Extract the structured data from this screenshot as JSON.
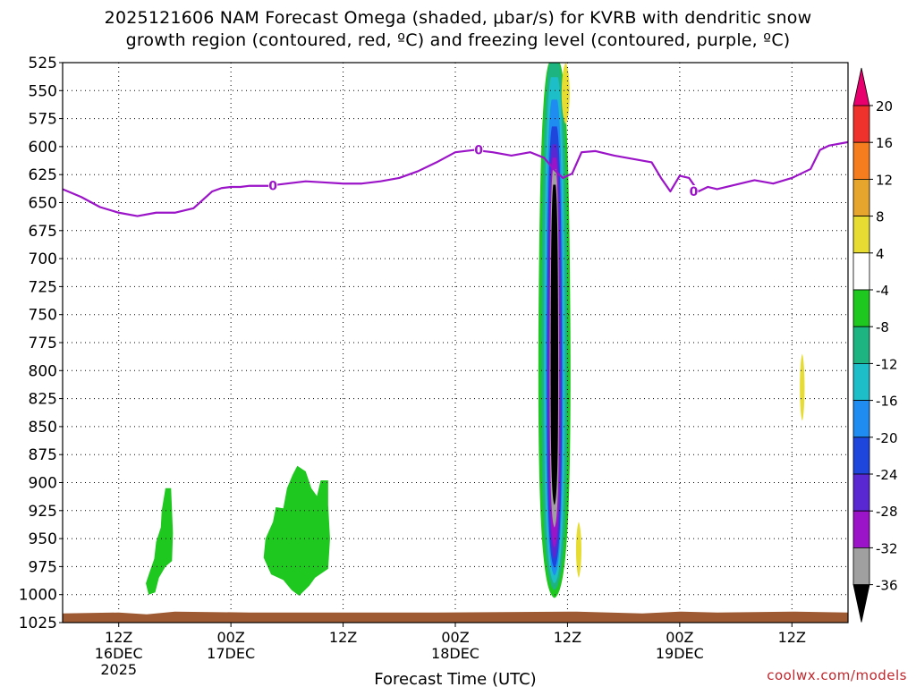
{
  "chart_data": {
    "type": "heatmap",
    "title_line1": "2025121606 NAM Forecast Omega (shaded, μbar/s) for KVRB with dendritic snow",
    "title_line2": "growth region (contoured, red, ºC) and freezing level (contoured, purple, ºC)",
    "xlabel": "Forecast Time (UTC)",
    "ylabel": "",
    "credit": "coolwx.com/models",
    "y_axis": {
      "scale": "pressure (mb), inverted",
      "ylim": [
        1025,
        525
      ],
      "ticks": [
        525,
        550,
        575,
        600,
        625,
        650,
        675,
        700,
        725,
        750,
        775,
        800,
        825,
        850,
        875,
        900,
        925,
        950,
        975,
        1000,
        1025
      ]
    },
    "x_axis": {
      "xlim_hours_from_init": [
        0,
        84
      ],
      "ticks": [
        {
          "hour": 6,
          "line1": "12Z",
          "line2": "16DEC",
          "line3": "2025"
        },
        {
          "hour": 18,
          "line1": "00Z",
          "line2": "17DEC",
          "line3": ""
        },
        {
          "hour": 30,
          "line1": "12Z",
          "line2": "",
          "line3": ""
        },
        {
          "hour": 42,
          "line1": "00Z",
          "line2": "18DEC",
          "line3": ""
        },
        {
          "hour": 54,
          "line1": "12Z",
          "line2": "",
          "line3": ""
        },
        {
          "hour": 66,
          "line1": "00Z",
          "line2": "19DEC",
          "line3": ""
        },
        {
          "hour": 78,
          "line1": "12Z",
          "line2": "",
          "line3": ""
        }
      ]
    },
    "grid": true,
    "colorbar": {
      "labels": [
        20,
        16,
        12,
        8,
        4,
        -4,
        -8,
        -12,
        -16,
        -20,
        -24,
        -28,
        -32,
        -36
      ],
      "colors": {
        "gt20": "#e8006e",
        "16_20": "#f0322d",
        "12_16": "#f57d1e",
        "8_12": "#e6a62d",
        "4_8": "#e6dc32",
        "m4_4": "#ffffff",
        "m8_m4": "#1ec81e",
        "m12_m8": "#1eb482",
        "m16_m12": "#1ebec8",
        "m20_m16": "#1e8cf0",
        "m24_m20": "#1e46dc",
        "m28_m24": "#5a28d2",
        "m32_m28": "#9b14c8",
        "m36_m32": "#a0a0a0",
        "lt_m36": "#000000"
      }
    },
    "freezing_level": {
      "label": "0",
      "color": "#9b14c8",
      "hours": [
        0,
        2,
        4,
        6,
        8,
        10,
        12,
        14,
        16,
        17,
        18,
        19,
        20,
        22,
        24,
        26,
        28,
        30,
        32,
        34,
        36,
        38,
        40,
        42,
        44,
        46,
        48,
        50,
        51.5,
        52.5,
        53.5,
        54.5,
        55.5,
        57,
        59,
        61,
        63,
        64,
        65,
        66,
        67,
        68,
        69,
        70,
        72,
        74,
        76,
        78,
        80,
        81,
        82,
        84
      ],
      "pressure": [
        638,
        645,
        654,
        659,
        662,
        659,
        659,
        655,
        640,
        637,
        636,
        636,
        635,
        635,
        633,
        631,
        632,
        633,
        633,
        631,
        628,
        622,
        614,
        605,
        603,
        605,
        608,
        605,
        610,
        620,
        628,
        624,
        605,
        604,
        608,
        611,
        614,
        628,
        640,
        626,
        628,
        640,
        636,
        638,
        634,
        630,
        633,
        628,
        620,
        603,
        599,
        596
      ]
    },
    "omega_features": [
      {
        "name": "uplift-column-main",
        "center_hour": 52.6,
        "half_width_hours": 1.9,
        "top_mb": 525,
        "bottom_mb": 1003,
        "min_value": -40
      },
      {
        "name": "uplift-patch-16dec",
        "center_hour": 10.5,
        "top_mb": 905,
        "bottom_mb": 1000,
        "value": -6
      },
      {
        "name": "uplift-patch-17dec",
        "center_hour": 25,
        "top_mb": 885,
        "bottom_mb": 1001,
        "value": -6
      },
      {
        "name": "sink-top",
        "center_hour": 53.8,
        "top_mb": 525,
        "bottom_mb": 580,
        "value": 5
      },
      {
        "name": "sink-low",
        "center_hour": 55.2,
        "top_mb": 935,
        "bottom_mb": 985,
        "value": 5
      },
      {
        "name": "sink-right",
        "center_hour": 79.1,
        "top_mb": 785,
        "bottom_mb": 845,
        "value": 5
      }
    ],
    "terrain": {
      "color": "#9e5a32",
      "surface_mb": 1016
    }
  }
}
